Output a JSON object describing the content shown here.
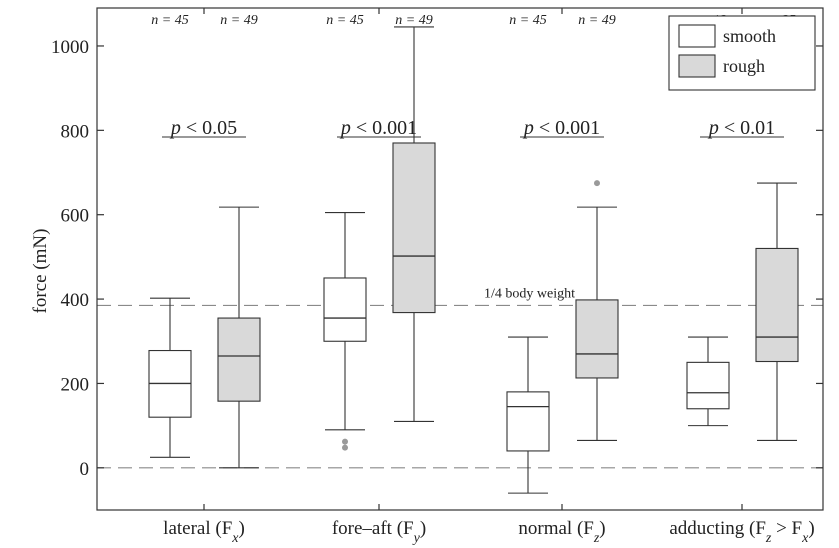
{
  "chart_data": {
    "type": "box",
    "ylabel": "force (mN)",
    "ylim": [
      -100,
      1090
    ],
    "yticks": [
      0,
      200,
      400,
      600,
      800,
      1000
    ],
    "legend": {
      "placement": "top-right",
      "entries": [
        {
          "name": "smooth",
          "fill": "#ffffff"
        },
        {
          "name": "rough",
          "fill": "#d9d9d9"
        }
      ]
    },
    "reference_lines": [
      {
        "y": 0,
        "style": "dashed"
      },
      {
        "y": 385,
        "style": "dashed",
        "label": "1/4 body weight"
      }
    ],
    "groups": [
      {
        "label": "lateral (F",
        "sub": "x",
        "label_tail": ")",
        "p_text": "p < 0.05",
        "boxes": [
          {
            "series": "smooth",
            "n": "n = 45",
            "whisker_low": 25,
            "q1": 120,
            "median": 200,
            "q3": 278,
            "whisker_high": 402,
            "outliers": []
          },
          {
            "series": "rough",
            "n": "n = 49",
            "whisker_low": 0,
            "q1": 158,
            "median": 265,
            "q3": 355,
            "whisker_high": 618,
            "outliers": []
          }
        ]
      },
      {
        "label": "fore–aft (F",
        "sub": "y",
        "label_tail": ")",
        "p_text": "p < 0.001",
        "boxes": [
          {
            "series": "smooth",
            "n": "n = 45",
            "whisker_low": 90,
            "q1": 300,
            "median": 355,
            "q3": 450,
            "whisker_high": 605,
            "outliers": [
              48,
              62
            ]
          },
          {
            "series": "rough",
            "n": "n = 49",
            "whisker_low": 110,
            "q1": 368,
            "median": 502,
            "q3": 770,
            "whisker_high": 1045,
            "outliers": []
          }
        ]
      },
      {
        "label": "normal (F",
        "sub": "z",
        "label_tail": ")",
        "p_text": "p < 0.001",
        "boxes": [
          {
            "series": "smooth",
            "n": "n = 45",
            "whisker_low": -60,
            "q1": 40,
            "median": 145,
            "q3": 180,
            "whisker_high": 310,
            "outliers": []
          },
          {
            "series": "rough",
            "n": "n = 49",
            "whisker_low": 65,
            "q1": 213,
            "median": 270,
            "q3": 398,
            "whisker_high": 618,
            "outliers": [
              675
            ]
          }
        ]
      },
      {
        "label": "adducting (F",
        "sub": "z",
        "label_tail": " > F",
        "sub2": "x",
        "label_tail2": ")",
        "p_text": "p < 0.01",
        "boxes": [
          {
            "series": "smooth",
            "n": "n = 12",
            "whisker_low": 100,
            "q1": 140,
            "median": 178,
            "q3": 250,
            "whisker_high": 310,
            "outliers": []
          },
          {
            "series": "rough",
            "n": "n = 25",
            "whisker_low": 65,
            "q1": 252,
            "median": 310,
            "q3": 520,
            "whisker_high": 675,
            "outliers": []
          }
        ]
      }
    ]
  }
}
